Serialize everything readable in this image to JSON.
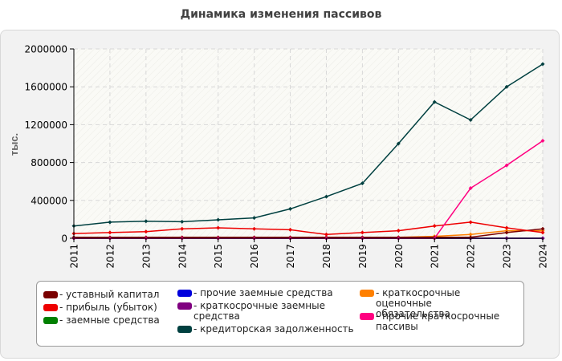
{
  "chart_data": {
    "type": "line",
    "title": "Динамика изменения пассивов",
    "ylabel": "тыс.",
    "xlabel": "",
    "ylim": [
      0,
      2000000
    ],
    "yticks": [
      0,
      400000,
      800000,
      1200000,
      1600000,
      2000000
    ],
    "x": [
      "2011",
      "2012",
      "2013",
      "2014",
      "2015",
      "2016",
      "2017",
      "2018",
      "2019",
      "2020",
      "2021",
      "2022",
      "2023",
      "2024"
    ],
    "series": [
      {
        "name": "уставный капитал",
        "color": "#7a0000",
        "values": [
          10000,
          10000,
          10000,
          10000,
          10000,
          10000,
          10000,
          10000,
          10000,
          10000,
          10000,
          10000,
          60000,
          100000
        ]
      },
      {
        "name": "прибыль (убыток)",
        "color": "#ee0000",
        "values": [
          50000,
          60000,
          70000,
          100000,
          110000,
          100000,
          90000,
          40000,
          60000,
          80000,
          130000,
          170000,
          110000,
          60000
        ]
      },
      {
        "name": "заемные средства",
        "color": "#008000",
        "values": [
          0,
          0,
          0,
          0,
          0,
          0,
          0,
          0,
          0,
          0,
          0,
          0,
          0,
          0
        ]
      },
      {
        "name": "прочие заемные средства",
        "color": "#0000dd",
        "values": [
          0,
          0,
          0,
          0,
          0,
          0,
          0,
          0,
          0,
          0,
          0,
          0,
          0,
          0
        ]
      },
      {
        "name": "краткосрочные заемные средства",
        "color": "#800080",
        "values": [
          0,
          0,
          0,
          0,
          0,
          0,
          0,
          0,
          0,
          0,
          0,
          0,
          0,
          0
        ]
      },
      {
        "name": "кредиторская задолженность",
        "color": "#004040",
        "values": [
          130000,
          170000,
          180000,
          175000,
          195000,
          215000,
          310000,
          440000,
          580000,
          1000000,
          1440000,
          1250000,
          1600000,
          1840000
        ]
      },
      {
        "name": "краткосрочные оценочные обязательства",
        "color": "#ff8000",
        "values": [
          5000,
          5000,
          5000,
          5000,
          5000,
          5000,
          5000,
          5000,
          5000,
          10000,
          20000,
          40000,
          80000,
          80000
        ]
      },
      {
        "name": "прочие краткосрочные пассивы",
        "color": "#ff0080",
        "values": [
          0,
          0,
          0,
          0,
          0,
          0,
          0,
          0,
          0,
          0,
          0,
          530000,
          770000,
          1030000
        ]
      }
    ],
    "legend_position": "bottom"
  },
  "legend": [
    {
      "label": "- уставный капитал",
      "color": "#7a0000"
    },
    {
      "label": "- прибыль (убыток)",
      "color": "#ee0000"
    },
    {
      "label": "- заемные средства",
      "color": "#008000"
    },
    {
      "label": "- прочие заемные средства",
      "color": "#0000dd"
    },
    {
      "label": "- краткосрочные заемные средства",
      "color": "#800080"
    },
    {
      "label": "- кредиторская задолженность",
      "color": "#004040"
    },
    {
      "label": "- краткосрочные оценочные обязательства",
      "color": "#ff8000"
    },
    {
      "label": "- прочие краткосрочные пассивы",
      "color": "#ff0080"
    }
  ]
}
